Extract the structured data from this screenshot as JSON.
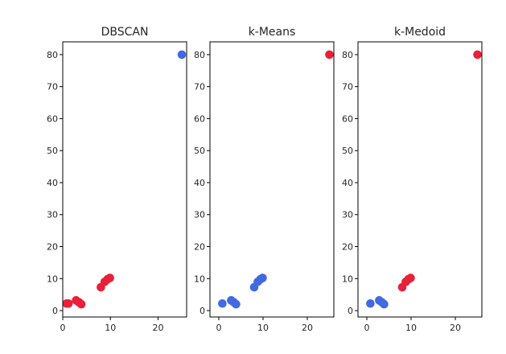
{
  "chart_data": [
    {
      "type": "scatter",
      "title": "DBSCAN",
      "xlabel": "",
      "ylabel": "",
      "xlim": [
        0,
        26
      ],
      "ylim": [
        -2,
        84
      ],
      "xticks": [
        0,
        10,
        20
      ],
      "yticks": [
        0,
        10,
        20,
        30,
        40,
        50,
        60,
        70,
        80
      ],
      "points": [
        {
          "x": 0.8,
          "y": 2.2,
          "color": "#e8203a"
        },
        {
          "x": 1.2,
          "y": 2.2,
          "color": "#e8203a"
        },
        {
          "x": 2.8,
          "y": 3.2,
          "color": "#e8203a"
        },
        {
          "x": 3.4,
          "y": 2.6,
          "color": "#e8203a"
        },
        {
          "x": 3.9,
          "y": 2.0,
          "color": "#e8203a"
        },
        {
          "x": 8.0,
          "y": 7.3,
          "color": "#e8203a"
        },
        {
          "x": 8.8,
          "y": 9.0,
          "color": "#e8203a"
        },
        {
          "x": 9.4,
          "y": 9.8,
          "color": "#e8203a"
        },
        {
          "x": 9.9,
          "y": 10.2,
          "color": "#e8203a"
        },
        {
          "x": 25.0,
          "y": 80.0,
          "color": "#4169e1"
        }
      ]
    },
    {
      "type": "scatter",
      "title": "k-Means",
      "xlabel": "",
      "ylabel": "",
      "xlim": [
        -2,
        26
      ],
      "ylim": [
        -2,
        84
      ],
      "xticks": [
        0,
        10,
        20
      ],
      "yticks": [
        0,
        10,
        20,
        30,
        40,
        50,
        60,
        70,
        80
      ],
      "points": [
        {
          "x": 0.8,
          "y": 2.2,
          "color": "#4169e1"
        },
        {
          "x": 2.8,
          "y": 3.2,
          "color": "#4169e1"
        },
        {
          "x": 3.4,
          "y": 2.6,
          "color": "#4169e1"
        },
        {
          "x": 3.9,
          "y": 2.0,
          "color": "#4169e1"
        },
        {
          "x": 8.0,
          "y": 7.3,
          "color": "#4169e1"
        },
        {
          "x": 8.8,
          "y": 9.0,
          "color": "#4169e1"
        },
        {
          "x": 9.4,
          "y": 9.8,
          "color": "#4169e1"
        },
        {
          "x": 9.9,
          "y": 10.2,
          "color": "#4169e1"
        },
        {
          "x": 25.0,
          "y": 80.0,
          "color": "#e8203a"
        }
      ]
    },
    {
      "type": "scatter",
      "title": "k-Medoid",
      "xlabel": "",
      "ylabel": "",
      "xlim": [
        -2,
        26
      ],
      "ylim": [
        -2,
        84
      ],
      "xticks": [
        0,
        10,
        20
      ],
      "yticks": [
        0,
        10,
        20,
        30,
        40,
        50,
        60,
        70,
        80
      ],
      "points": [
        {
          "x": 0.8,
          "y": 2.2,
          "color": "#4169e1"
        },
        {
          "x": 2.8,
          "y": 3.2,
          "color": "#4169e1"
        },
        {
          "x": 3.4,
          "y": 2.6,
          "color": "#4169e1"
        },
        {
          "x": 3.9,
          "y": 2.0,
          "color": "#4169e1"
        },
        {
          "x": 8.0,
          "y": 7.3,
          "color": "#e8203a"
        },
        {
          "x": 8.8,
          "y": 9.0,
          "color": "#e8203a"
        },
        {
          "x": 9.4,
          "y": 9.8,
          "color": "#e8203a"
        },
        {
          "x": 9.9,
          "y": 10.2,
          "color": "#e8203a"
        },
        {
          "x": 25.0,
          "y": 80.0,
          "color": "#e8203a"
        }
      ]
    }
  ]
}
